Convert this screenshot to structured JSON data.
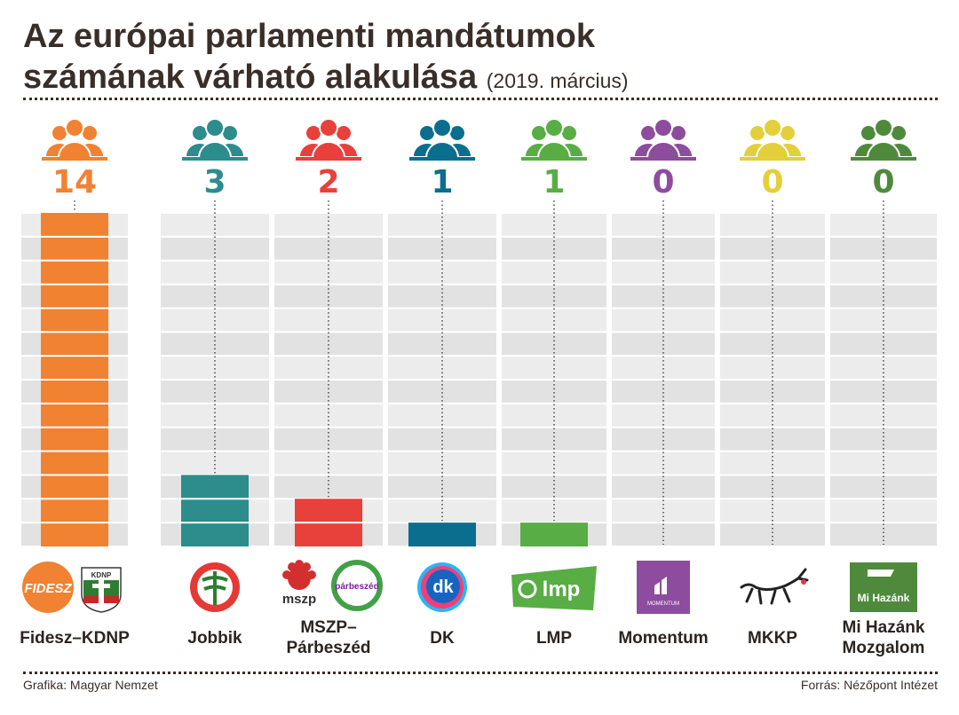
{
  "title": {
    "line1": "Az európai parlamenti mandátumok",
    "line2": "számának várható alakulása",
    "subtitle": "(2019. március)"
  },
  "footer": {
    "credit": "Grafika: Magyar Nemzet",
    "source": "Forrás: Nézőpont Intézet"
  },
  "chart_data": {
    "type": "bar",
    "title": "Az európai parlamenti mandátumok számának várható alakulása (2019. március)",
    "categories": [
      "Fidesz–KDNP",
      "Jobbik",
      "MSZP–Párbeszéd",
      "DK",
      "LMP",
      "Momentum",
      "MKKP",
      "Mi Hazánk Mozgalom"
    ],
    "values": [
      14,
      3,
      2,
      1,
      1,
      0,
      0,
      0
    ],
    "value_labels": [
      "14",
      "3",
      "2",
      "1",
      "1",
      "0",
      "0",
      "0"
    ],
    "colors": [
      "#f08232",
      "#2d8c8c",
      "#e8403a",
      "#0b6e8f",
      "#58ad45",
      "#8e4c9e",
      "#e3cf3a",
      "#4f8a3c"
    ],
    "ylim": [
      0,
      14
    ],
    "unit": "mandátum",
    "grid": true
  },
  "parties": [
    {
      "lines": [
        "Fidesz–KDNP"
      ],
      "logo": "fidesz-kdnp-logo",
      "logo_text": [
        "FIDESZ",
        "KDNP"
      ]
    },
    {
      "lines": [
        "Jobbik"
      ],
      "logo": "jobbik-logo",
      "logo_text": []
    },
    {
      "lines": [
        "MSZP–",
        "Párbeszéd"
      ],
      "logo": "mszp-parbeszed-logo",
      "logo_text": [
        "mszp",
        "párbeszéd"
      ]
    },
    {
      "lines": [
        "DK"
      ],
      "logo": "dk-logo",
      "logo_text": [
        "dk"
      ]
    },
    {
      "lines": [
        "LMP"
      ],
      "logo": "lmp-logo",
      "logo_text": [
        "lmp"
      ]
    },
    {
      "lines": [
        "Momentum"
      ],
      "logo": "momentum-logo",
      "logo_text": [
        "MOMENTUM"
      ]
    },
    {
      "lines": [
        "MKKP"
      ],
      "logo": "mkkp-dog-logo",
      "logo_text": []
    },
    {
      "lines": [
        "Mi Hazánk",
        "Mozgalom"
      ],
      "logo": "mi-hazank-logo",
      "logo_text": [
        "Mi Hazánk"
      ]
    }
  ]
}
